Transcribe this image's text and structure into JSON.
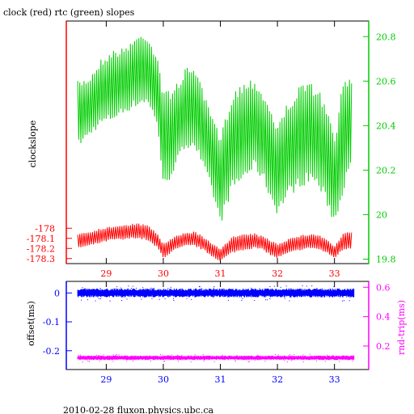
{
  "title": "clock (red) rtc (green) slopes",
  "footer": "2010-02-28 fluxon.physics.ubc.ca",
  "colors": {
    "red": "#ff0000",
    "green": "#00cc00",
    "blue": "#0000ff",
    "magenta": "#ff00ff",
    "axis": "#000000"
  },
  "chart_data": [
    {
      "type": "line",
      "ylabel": "clockslope",
      "xlim": [
        28.3,
        33.6
      ],
      "ylim_left": [
        -178.35,
        -175.95
      ],
      "ylim_right": [
        19.78,
        20.87
      ],
      "x_ticks": [
        "29",
        "30",
        "31",
        "32",
        "33"
      ],
      "y_left_ticks": [
        "-178",
        "-178.1",
        "-178.2",
        "-178.3"
      ],
      "y_left_values": [
        -178.0,
        -178.1,
        -178.2,
        -178.3
      ],
      "y_right_ticks": [
        "20.8",
        "20.6",
        "20.4",
        "20.2",
        "20",
        "19.8"
      ],
      "y_right_values": [
        20.8,
        20.6,
        20.4,
        20.2,
        20.0,
        19.8
      ],
      "series": [
        {
          "name": "clock",
          "axis": "left",
          "color": "#ff0000",
          "x": [
            28.5,
            28.7,
            28.9,
            29.1,
            29.3,
            29.5,
            29.7,
            29.9,
            30.0,
            30.2,
            30.4,
            30.55,
            30.7,
            30.85,
            31.0,
            31.2,
            31.4,
            31.6,
            31.75,
            31.9,
            32.0,
            32.2,
            32.4,
            32.6,
            32.75,
            32.9,
            33.0,
            33.15,
            33.3
          ],
          "upper": [
            -178.05,
            -178.03,
            -178.0,
            -177.98,
            -177.97,
            -177.95,
            -177.96,
            -178.05,
            -178.15,
            -178.08,
            -178.04,
            -178.03,
            -178.08,
            -178.15,
            -178.2,
            -178.08,
            -178.06,
            -178.05,
            -178.08,
            -178.12,
            -178.15,
            -178.1,
            -178.07,
            -178.05,
            -178.07,
            -178.12,
            -178.18,
            -178.05,
            -178.03
          ],
          "lower": [
            -178.2,
            -178.18,
            -178.15,
            -178.12,
            -178.12,
            -178.1,
            -178.12,
            -178.2,
            -178.3,
            -178.22,
            -178.18,
            -178.18,
            -178.22,
            -178.28,
            -178.33,
            -178.25,
            -178.22,
            -178.2,
            -178.22,
            -178.28,
            -178.3,
            -178.25,
            -178.22,
            -178.2,
            -178.22,
            -178.26,
            -178.3,
            -178.22,
            -178.2
          ]
        },
        {
          "name": "rtc",
          "axis": "right",
          "color": "#00cc00",
          "x": [
            28.5,
            28.7,
            28.9,
            29.1,
            29.3,
            29.5,
            29.7,
            29.9,
            30.0,
            30.2,
            30.4,
            30.55,
            30.7,
            30.85,
            31.0,
            31.2,
            31.4,
            31.6,
            31.75,
            31.9,
            32.0,
            32.2,
            32.4,
            32.6,
            32.75,
            32.9,
            33.0,
            33.15,
            33.3
          ],
          "upper": [
            20.6,
            20.62,
            20.7,
            20.74,
            20.75,
            20.8,
            20.82,
            20.72,
            20.55,
            20.58,
            20.66,
            20.68,
            20.55,
            20.45,
            20.35,
            20.55,
            20.6,
            20.62,
            20.55,
            20.48,
            20.4,
            20.52,
            20.58,
            20.6,
            20.55,
            20.45,
            20.35,
            20.6,
            20.64
          ],
          "lower": [
            20.3,
            20.35,
            20.4,
            20.42,
            20.45,
            20.48,
            20.5,
            20.4,
            20.1,
            20.2,
            20.3,
            20.3,
            20.2,
            20.1,
            19.95,
            20.1,
            20.15,
            20.2,
            20.15,
            20.05,
            20.0,
            20.08,
            20.12,
            20.15,
            20.1,
            20.02,
            19.95,
            20.1,
            20.2
          ]
        }
      ]
    },
    {
      "type": "scatter",
      "ylabel_left": "offset(ms)",
      "ylabel_right": "rnd-trip(ms)",
      "xlim": [
        28.3,
        33.6
      ],
      "ylim_left": [
        -0.265,
        0.04
      ],
      "ylim_right": [
        0.04,
        0.64
      ],
      "x_ticks": [
        "29",
        "30",
        "31",
        "32",
        "33"
      ],
      "y_left_ticks": [
        "0",
        "-0.1",
        "-0.2"
      ],
      "y_left_values": [
        0,
        -0.1,
        -0.2
      ],
      "y_right_ticks": [
        "0.6",
        "0.4",
        "0.2"
      ],
      "y_right_values": [
        0.6,
        0.4,
        0.2
      ],
      "series": [
        {
          "name": "offset",
          "axis": "left",
          "color": "#0000ff",
          "x_range": [
            28.5,
            33.35
          ],
          "center": 0.0,
          "spread": 0.012
        },
        {
          "name": "rnd-trip",
          "axis": "right",
          "color": "#ff00ff",
          "x_range": [
            28.5,
            33.35
          ],
          "center": 0.12,
          "spread": 0.012
        }
      ]
    }
  ]
}
